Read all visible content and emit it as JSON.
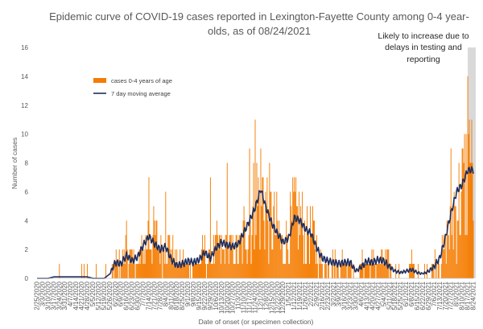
{
  "chart_data": {
    "type": "bar",
    "title_lines": [
      "Epidemic curve of COVID-19 cases reported in Lexington-Fayette County among 0-4 year-",
      "olds, as of 08/24/2021"
    ],
    "xlabel": "Date of onset (or specimen collection)",
    "ylabel": "Number of cases",
    "ylim": [
      0,
      16
    ],
    "yticks": [
      "0",
      "2",
      "4",
      "6",
      "8",
      "10",
      "12",
      "14",
      "16"
    ],
    "grid": false,
    "legend_position": "upper-left",
    "annotation_lines": [
      "Likely to increase due to",
      "delays in testing and",
      "reporting"
    ],
    "shaded_region": [
      "8/17/2021",
      "8/24/2021"
    ],
    "x_start": "2/25/2020",
    "x_end": "8/24/2021",
    "xtick_labels": [
      "2/25/2020",
      "3/3/2020",
      "3/10/2020",
      "3/17/2020",
      "3/24/2020",
      "3/31/2020",
      "4/7/2020",
      "4/14/2020",
      "4/21/2020",
      "4/28/2020",
      "5/5/2020",
      "5/12/2020",
      "5/19/2020",
      "5/26/2020",
      "6/2/2020",
      "6/9/2020",
      "6/16/2020",
      "6/23/2020",
      "6/30/2020",
      "7/7/2020",
      "7/14/2020",
      "7/21/2020",
      "7/28/2020",
      "8/4/2020",
      "8/11/2020",
      "8/18/2020",
      "8/25/2020",
      "9/1/2020",
      "9/8/2020",
      "9/15/2020",
      "9/22/2020",
      "9/29/2020",
      "10/6/2020",
      "10/13/2020",
      "10/20/2020",
      "10/27/2020",
      "11/3/2020",
      "11/10/2020",
      "11/17/2020",
      "11/24/2020",
      "12/1/2020",
      "12/8/2020",
      "12/15/2020",
      "12/22/2020",
      "12/29/2020",
      "1/5/2021",
      "1/12/2021",
      "1/19/2021",
      "1/26/2021",
      "2/2/2021",
      "2/9/2021",
      "2/16/2021",
      "2/23/2021",
      "3/2/2021",
      "3/9/2021",
      "3/16/2021",
      "3/23/2021",
      "3/30/2021",
      "4/6/2021",
      "4/13/2021",
      "4/20/2021",
      "4/27/2021",
      "5/4/2021",
      "5/11/2021",
      "5/18/2021",
      "5/25/2021",
      "6/1/2021",
      "6/8/2021",
      "6/15/2021",
      "6/22/2021",
      "6/29/2021",
      "7/6/2021",
      "7/13/2021",
      "7/20/2021",
      "7/27/2021",
      "8/3/2021",
      "8/10/2021",
      "8/17/2021",
      "8/24/2021"
    ],
    "weekly_values": [
      0,
      0,
      0,
      0,
      0,
      0,
      0,
      0,
      0,
      0,
      0,
      0,
      0,
      0,
      1,
      1,
      2,
      1,
      1,
      2,
      3,
      3,
      2,
      2,
      2,
      1,
      1,
      1,
      1,
      1,
      2,
      1,
      2,
      2,
      2,
      2,
      2,
      3,
      4,
      5,
      6,
      5,
      4,
      3,
      2,
      3,
      4,
      4,
      3,
      3,
      2,
      1,
      1,
      1,
      1,
      1,
      1,
      0,
      1,
      1,
      1,
      1,
      1,
      1,
      0,
      0,
      0,
      1,
      0,
      0,
      0,
      1,
      1,
      2,
      4,
      5,
      6,
      7
    ],
    "peak_values": [
      {
        "date": "3/24/2020",
        "value": 1
      },
      {
        "date": "4/21/2020",
        "value": 1
      },
      {
        "date": "6/16/2020",
        "value": 4
      },
      {
        "date": "7/14/2020",
        "value": 7
      },
      {
        "date": "8/4/2020",
        "value": 6
      },
      {
        "date": "9/29/2020",
        "value": 7
      },
      {
        "date": "10/20/2020",
        "value": 8
      },
      {
        "date": "11/17/2020",
        "value": 9
      },
      {
        "date": "11/24/2020",
        "value": 11
      },
      {
        "date": "12/1/2020",
        "value": 9
      },
      {
        "date": "1/12/2021",
        "value": 7
      },
      {
        "date": "7/27/2021",
        "value": 9
      },
      {
        "date": "8/17/2021",
        "value": 14
      },
      {
        "date": "8/19/2021",
        "value": 11
      },
      {
        "date": "8/21/2021",
        "value": 8
      }
    ],
    "series": [
      {
        "name": "cases 0-4 years of age",
        "color": "#F57C00",
        "kind": "bar"
      },
      {
        "name": "7 day moving average",
        "color": "#1F2D5C",
        "kind": "line",
        "weekly_values": [
          0,
          0,
          0,
          0.1,
          0.1,
          0.1,
          0.1,
          0.1,
          0.1,
          0.1,
          0,
          0,
          0,
          0.3,
          1.1,
          1,
          1.6,
          1.2,
          1.5,
          2.3,
          2.9,
          2.4,
          2,
          2.2,
          1.3,
          0.9,
          1,
          1.2,
          1.1,
          1.3,
          1.8,
          1.4,
          2.1,
          2.5,
          2.3,
          2.2,
          2.4,
          3.2,
          4,
          4.9,
          6.2,
          4.8,
          3.8,
          3.1,
          2.5,
          2.8,
          4.2,
          4,
          3.4,
          3.1,
          2.1,
          1.4,
          1.2,
          1.1,
          1,
          1.1,
          1.1,
          0.5,
          0.8,
          1.2,
          1.1,
          1.3,
          1.2,
          0.8,
          0.5,
          0.4,
          0.5,
          0.6,
          0.4,
          0.3,
          0.5,
          0.8,
          1.4,
          2.8,
          4.5,
          6,
          6.5,
          7.5
        ]
      }
    ],
    "colors": {
      "bar": "#F57C00",
      "line": "#1F2D5C",
      "shade": "#D9D9D9",
      "text": "#595959"
    }
  }
}
